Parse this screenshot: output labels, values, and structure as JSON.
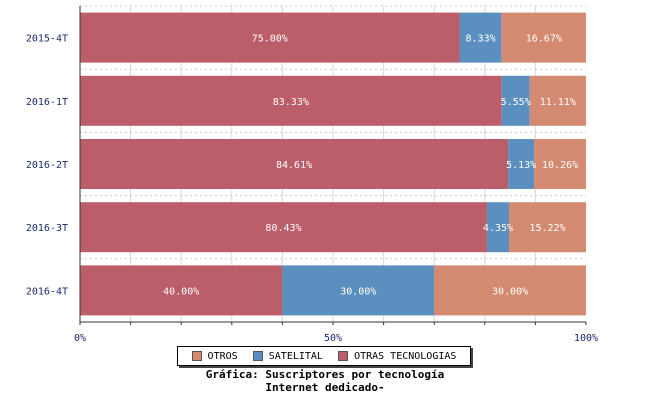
{
  "chart_data": {
    "type": "bar",
    "orientation": "horizontal",
    "stacked": true,
    "categories": [
      "2015-4T",
      "2016-1T",
      "2016-2T",
      "2016-3T",
      "2016-4T"
    ],
    "series": [
      {
        "name": "OTRAS TECNOLOGIAS",
        "color": "#bc5e69",
        "values": [
          75.0,
          83.33,
          84.61,
          80.43,
          40.0
        ],
        "labels": [
          "75.00%",
          "83.33%",
          "84.61%",
          "80.43%",
          "40.00%"
        ]
      },
      {
        "name": "SATELITAL",
        "color": "#5b8fbf",
        "values": [
          8.33,
          5.55,
          5.13,
          4.35,
          30.0
        ],
        "labels": [
          "8.33%",
          "5.55%",
          "5.13%",
          "4.35%",
          "30.00%"
        ]
      },
      {
        "name": "OTROS",
        "color": "#d48a70",
        "values": [
          16.67,
          11.11,
          10.26,
          15.22,
          30.0
        ],
        "labels": [
          "16.67%",
          "11.11%",
          "10.26%",
          "15.22%",
          "30.00%"
        ]
      }
    ],
    "xlim": [
      0,
      100
    ],
    "xticks": [
      0,
      50,
      100
    ],
    "xtick_labels": [
      "0%",
      "50%",
      "100%"
    ],
    "grid": true,
    "legend_order": [
      "OTROS",
      "SATELITAL",
      "OTRAS TECNOLOGIAS"
    ],
    "legend_placement": "bottom-center",
    "caption_lines": [
      "Gráfica: Suscriptores por tecnología",
      "Internet dedicado-"
    ]
  }
}
